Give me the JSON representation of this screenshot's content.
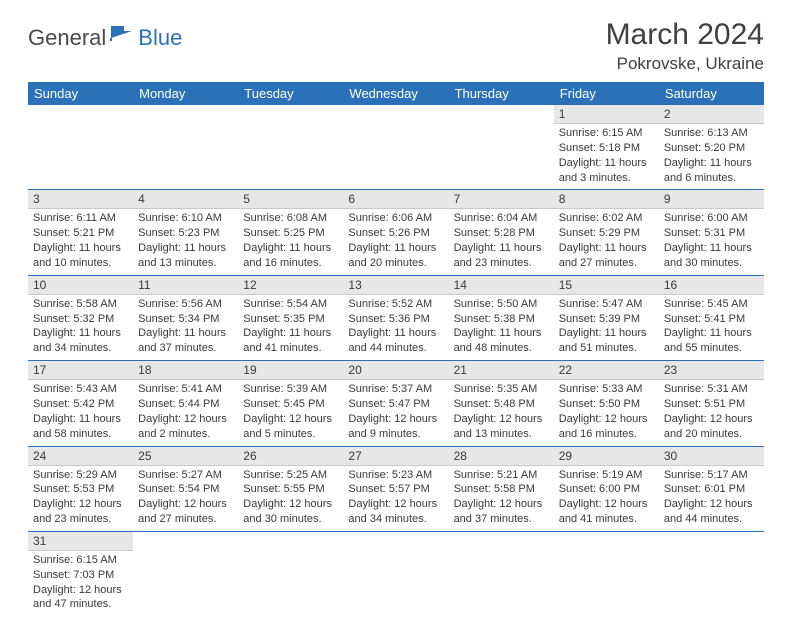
{
  "logo": {
    "part1": "General",
    "part2": "Blue"
  },
  "title": "March 2024",
  "location": "Pokrovske, Ukraine",
  "colors": {
    "header_bg": "#2a71b8",
    "header_text": "#ffffff",
    "daynum_bg": "#e7e7e7",
    "border": "#2a71b8",
    "body_text": "#3a3a3a"
  },
  "weekdays": [
    "Sunday",
    "Monday",
    "Tuesday",
    "Wednesday",
    "Thursday",
    "Friday",
    "Saturday"
  ],
  "weeks": [
    [
      null,
      null,
      null,
      null,
      null,
      {
        "n": "1",
        "sr": "Sunrise: 6:15 AM",
        "ss": "Sunset: 5:18 PM",
        "dl1": "Daylight: 11 hours",
        "dl2": "and 3 minutes."
      },
      {
        "n": "2",
        "sr": "Sunrise: 6:13 AM",
        "ss": "Sunset: 5:20 PM",
        "dl1": "Daylight: 11 hours",
        "dl2": "and 6 minutes."
      }
    ],
    [
      {
        "n": "3",
        "sr": "Sunrise: 6:11 AM",
        "ss": "Sunset: 5:21 PM",
        "dl1": "Daylight: 11 hours",
        "dl2": "and 10 minutes."
      },
      {
        "n": "4",
        "sr": "Sunrise: 6:10 AM",
        "ss": "Sunset: 5:23 PM",
        "dl1": "Daylight: 11 hours",
        "dl2": "and 13 minutes."
      },
      {
        "n": "5",
        "sr": "Sunrise: 6:08 AM",
        "ss": "Sunset: 5:25 PM",
        "dl1": "Daylight: 11 hours",
        "dl2": "and 16 minutes."
      },
      {
        "n": "6",
        "sr": "Sunrise: 6:06 AM",
        "ss": "Sunset: 5:26 PM",
        "dl1": "Daylight: 11 hours",
        "dl2": "and 20 minutes."
      },
      {
        "n": "7",
        "sr": "Sunrise: 6:04 AM",
        "ss": "Sunset: 5:28 PM",
        "dl1": "Daylight: 11 hours",
        "dl2": "and 23 minutes."
      },
      {
        "n": "8",
        "sr": "Sunrise: 6:02 AM",
        "ss": "Sunset: 5:29 PM",
        "dl1": "Daylight: 11 hours",
        "dl2": "and 27 minutes."
      },
      {
        "n": "9",
        "sr": "Sunrise: 6:00 AM",
        "ss": "Sunset: 5:31 PM",
        "dl1": "Daylight: 11 hours",
        "dl2": "and 30 minutes."
      }
    ],
    [
      {
        "n": "10",
        "sr": "Sunrise: 5:58 AM",
        "ss": "Sunset: 5:32 PM",
        "dl1": "Daylight: 11 hours",
        "dl2": "and 34 minutes."
      },
      {
        "n": "11",
        "sr": "Sunrise: 5:56 AM",
        "ss": "Sunset: 5:34 PM",
        "dl1": "Daylight: 11 hours",
        "dl2": "and 37 minutes."
      },
      {
        "n": "12",
        "sr": "Sunrise: 5:54 AM",
        "ss": "Sunset: 5:35 PM",
        "dl1": "Daylight: 11 hours",
        "dl2": "and 41 minutes."
      },
      {
        "n": "13",
        "sr": "Sunrise: 5:52 AM",
        "ss": "Sunset: 5:36 PM",
        "dl1": "Daylight: 11 hours",
        "dl2": "and 44 minutes."
      },
      {
        "n": "14",
        "sr": "Sunrise: 5:50 AM",
        "ss": "Sunset: 5:38 PM",
        "dl1": "Daylight: 11 hours",
        "dl2": "and 48 minutes."
      },
      {
        "n": "15",
        "sr": "Sunrise: 5:47 AM",
        "ss": "Sunset: 5:39 PM",
        "dl1": "Daylight: 11 hours",
        "dl2": "and 51 minutes."
      },
      {
        "n": "16",
        "sr": "Sunrise: 5:45 AM",
        "ss": "Sunset: 5:41 PM",
        "dl1": "Daylight: 11 hours",
        "dl2": "and 55 minutes."
      }
    ],
    [
      {
        "n": "17",
        "sr": "Sunrise: 5:43 AM",
        "ss": "Sunset: 5:42 PM",
        "dl1": "Daylight: 11 hours",
        "dl2": "and 58 minutes."
      },
      {
        "n": "18",
        "sr": "Sunrise: 5:41 AM",
        "ss": "Sunset: 5:44 PM",
        "dl1": "Daylight: 12 hours",
        "dl2": "and 2 minutes."
      },
      {
        "n": "19",
        "sr": "Sunrise: 5:39 AM",
        "ss": "Sunset: 5:45 PM",
        "dl1": "Daylight: 12 hours",
        "dl2": "and 5 minutes."
      },
      {
        "n": "20",
        "sr": "Sunrise: 5:37 AM",
        "ss": "Sunset: 5:47 PM",
        "dl1": "Daylight: 12 hours",
        "dl2": "and 9 minutes."
      },
      {
        "n": "21",
        "sr": "Sunrise: 5:35 AM",
        "ss": "Sunset: 5:48 PM",
        "dl1": "Daylight: 12 hours",
        "dl2": "and 13 minutes."
      },
      {
        "n": "22",
        "sr": "Sunrise: 5:33 AM",
        "ss": "Sunset: 5:50 PM",
        "dl1": "Daylight: 12 hours",
        "dl2": "and 16 minutes."
      },
      {
        "n": "23",
        "sr": "Sunrise: 5:31 AM",
        "ss": "Sunset: 5:51 PM",
        "dl1": "Daylight: 12 hours",
        "dl2": "and 20 minutes."
      }
    ],
    [
      {
        "n": "24",
        "sr": "Sunrise: 5:29 AM",
        "ss": "Sunset: 5:53 PM",
        "dl1": "Daylight: 12 hours",
        "dl2": "and 23 minutes."
      },
      {
        "n": "25",
        "sr": "Sunrise: 5:27 AM",
        "ss": "Sunset: 5:54 PM",
        "dl1": "Daylight: 12 hours",
        "dl2": "and 27 minutes."
      },
      {
        "n": "26",
        "sr": "Sunrise: 5:25 AM",
        "ss": "Sunset: 5:55 PM",
        "dl1": "Daylight: 12 hours",
        "dl2": "and 30 minutes."
      },
      {
        "n": "27",
        "sr": "Sunrise: 5:23 AM",
        "ss": "Sunset: 5:57 PM",
        "dl1": "Daylight: 12 hours",
        "dl2": "and 34 minutes."
      },
      {
        "n": "28",
        "sr": "Sunrise: 5:21 AM",
        "ss": "Sunset: 5:58 PM",
        "dl1": "Daylight: 12 hours",
        "dl2": "and 37 minutes."
      },
      {
        "n": "29",
        "sr": "Sunrise: 5:19 AM",
        "ss": "Sunset: 6:00 PM",
        "dl1": "Daylight: 12 hours",
        "dl2": "and 41 minutes."
      },
      {
        "n": "30",
        "sr": "Sunrise: 5:17 AM",
        "ss": "Sunset: 6:01 PM",
        "dl1": "Daylight: 12 hours",
        "dl2": "and 44 minutes."
      }
    ],
    [
      {
        "n": "31",
        "sr": "Sunrise: 6:15 AM",
        "ss": "Sunset: 7:03 PM",
        "dl1": "Daylight: 12 hours",
        "dl2": "and 47 minutes."
      },
      null,
      null,
      null,
      null,
      null,
      null
    ]
  ]
}
